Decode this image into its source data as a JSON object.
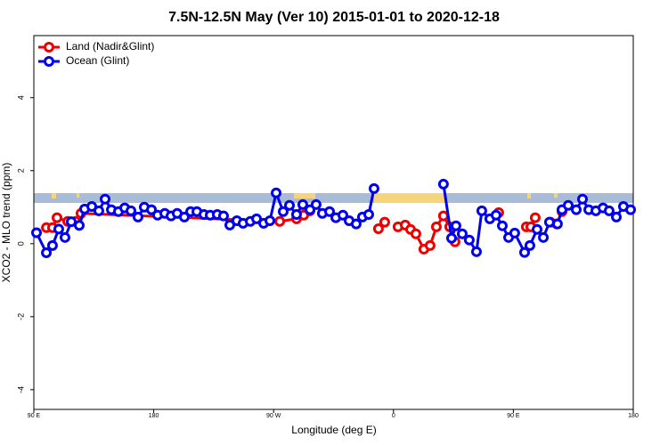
{
  "chart_data": {
    "type": "line",
    "title": "7.5N-12.5N May (Ver 10)   2015-01-01 to 2020-12-18",
    "x_label": "Longitude (deg E)",
    "y_label": "XCO2 - MLO trend (ppm)",
    "xlim": [
      90,
      540
    ],
    "xticks": [
      {
        "value": 90,
        "label": "90 E"
      },
      {
        "value": 180,
        "label": "180"
      },
      {
        "value": 270,
        "label": "90 W"
      },
      {
        "value": 360,
        "label": "0"
      },
      {
        "value": 450,
        "label": "90 E"
      },
      {
        "value": 540,
        "label": "180"
      }
    ],
    "ylim": [
      -4.54,
      5.7
    ],
    "yticks": [
      -4,
      -2,
      0,
      2,
      4
    ],
    "legend": "top-left",
    "series": [
      {
        "name": "Land (Nadir&Glint)",
        "color": "#ee0000",
        "x": [
          99.4,
          104.0,
          107.4,
          115.4,
          121.4,
          125.4,
          274.6,
          287.2,
          292.6,
          297.3,
          320,
          348.7,
          353.4,
          358,
          363.4,
          368.8,
          372.8,
          376.8,
          382.8,
          387.5,
          392.2,
          397.5,
          402.2,
          406.2,
          420,
          439.0,
          450,
          459.7,
          463.1,
          466.4,
          470,
          477.8,
          482.5,
          486.5
        ],
        "values": [
          0.44,
          0.44,
          0.71,
          0.61,
          0.61,
          0.83,
          0.61,
          0.68,
          0.78,
          0.9,
          null,
          0.41,
          0.59,
          null,
          0.46,
          0.51,
          0.39,
          0.27,
          -0.15,
          -0.05,
          0.46,
          0.76,
          0.46,
          0.05,
          null,
          0.85,
          null,
          0.46,
          0.46,
          0.71,
          null,
          0.59,
          0.54,
          0.88
        ]
      },
      {
        "name": "Ocean (Glint)",
        "color": "#0000ee",
        "x": [
          92.0,
          99.4,
          104.0,
          108.7,
          113.4,
          118.1,
          124.1,
          128.1,
          133.5,
          138.8,
          143.5,
          148.2,
          153.5,
          158.2,
          162.9,
          168.2,
          172.9,
          178.3,
          182.9,
          188.3,
          193.0,
          197.6,
          203.0,
          207.7,
          212.4,
          217.7,
          222.4,
          227.7,
          232.4,
          237.1,
          242.4,
          247.1,
          252.5,
          257.2,
          262.5,
          267.2,
          271.9,
          277.2,
          281.9,
          287.2,
          291.9,
          297.3,
          301.9,
          306.6,
          312.0,
          316.7,
          322.0,
          326.7,
          332.0,
          336.7,
          341.4,
          345.4,
          370,
          397.5,
          403.6,
          406.9,
          411.6,
          416.9,
          422.3,
          426.3,
          432.3,
          437.0,
          441.7,
          446.4,
          451.0,
          458.4,
          462.4,
          467.8,
          472.5,
          477.1,
          483.1,
          486.5,
          491.2,
          497.2,
          501.9,
          506.6,
          511.9,
          517.3,
          521.9,
          527.3,
          532.6,
          538.0
        ],
        "values": [
          0.3,
          -0.25,
          -0.05,
          0.4,
          0.17,
          0.6,
          0.5,
          0.95,
          1.02,
          0.9,
          1.22,
          0.93,
          0.88,
          0.98,
          0.9,
          0.73,
          1.0,
          0.93,
          0.78,
          0.83,
          0.76,
          0.83,
          0.73,
          0.88,
          0.88,
          0.8,
          0.78,
          0.8,
          0.76,
          0.51,
          0.63,
          0.56,
          0.61,
          0.68,
          0.56,
          0.63,
          1.39,
          0.88,
          1.05,
          0.8,
          1.07,
          0.93,
          1.07,
          0.83,
          0.88,
          0.71,
          0.78,
          0.63,
          0.54,
          0.73,
          0.8,
          1.51,
          null,
          1.63,
          0.15,
          0.49,
          0.27,
          0.1,
          -0.22,
          0.9,
          0.68,
          0.78,
          0.49,
          0.17,
          0.29,
          -0.24,
          -0.05,
          0.39,
          0.17,
          0.59,
          0.54,
          0.93,
          1.05,
          0.93,
          1.22,
          0.93,
          0.9,
          0.98,
          0.9,
          0.73,
          1.02,
          0.93
        ]
      }
    ]
  }
}
